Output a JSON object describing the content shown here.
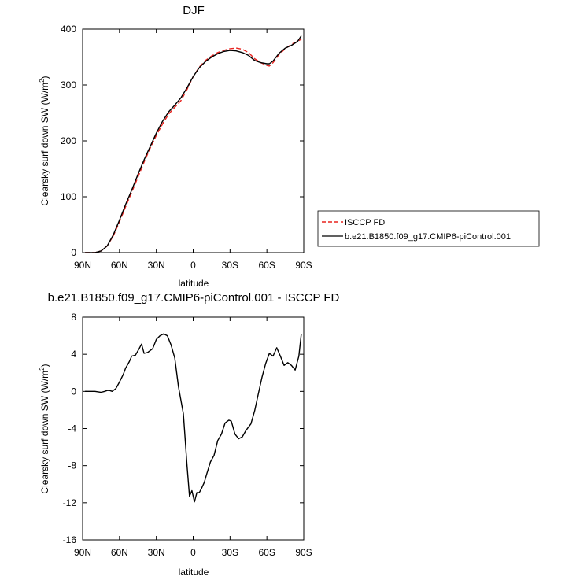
{
  "chart_data": [
    {
      "type": "line",
      "title": "DJF",
      "xlabel": "latitude",
      "ylabel": "Clearsky surf down SW (W/m",
      "ylabel_sup": "2",
      "ylabel_close": ")",
      "xlim": [
        90,
        -90
      ],
      "ylim": [
        0,
        400
      ],
      "x_ticks": [
        90,
        60,
        30,
        0,
        -30,
        -60,
        -90
      ],
      "x_tick_labels": [
        "90N",
        "60N",
        "30N",
        "0",
        "30S",
        "60S",
        "90S"
      ],
      "y_ticks": [
        0,
        100,
        200,
        300,
        400
      ],
      "y_tick_labels": [
        "0",
        "100",
        "200",
        "300",
        "400"
      ],
      "legend_position": "right",
      "grid": false,
      "series": [
        {
          "name": "ISCCP FD",
          "color": "#e8231f",
          "dash": "dashed",
          "x": [
            88,
            85,
            80,
            75,
            70,
            65,
            60,
            55,
            50,
            45,
            40,
            35,
            30,
            25,
            20,
            15,
            10,
            5,
            0,
            -5,
            -10,
            -15,
            -20,
            -25,
            -30,
            -35,
            -40,
            -45,
            -50,
            -55,
            -60,
            -62,
            -65,
            -70,
            -75,
            -80,
            -85,
            -88
          ],
          "y": [
            0,
            0,
            0,
            3,
            12,
            30,
            55,
            82,
            108,
            135,
            162,
            187,
            210,
            230,
            248,
            260,
            272,
            292,
            315,
            332,
            344,
            352,
            358,
            362,
            365,
            366,
            364,
            358,
            347,
            340,
            335,
            334,
            340,
            355,
            365,
            373,
            378,
            382
          ]
        },
        {
          "name": "b.e21.B1850.f09_g17.CMIP6-piControl.001",
          "color": "#000000",
          "dash": "solid",
          "x": [
            88,
            85,
            80,
            75,
            70,
            65,
            60,
            55,
            50,
            45,
            40,
            35,
            30,
            25,
            20,
            15,
            10,
            5,
            0,
            -5,
            -10,
            -15,
            -20,
            -25,
            -30,
            -35,
            -40,
            -45,
            -50,
            -55,
            -60,
            -62,
            -65,
            -70,
            -75,
            -80,
            -85,
            -88
          ],
          "y": [
            0,
            0,
            0,
            3,
            12,
            32,
            58,
            86,
            112,
            140,
            166,
            190,
            214,
            235,
            252,
            264,
            277,
            295,
            315,
            331,
            342,
            350,
            356,
            360,
            362,
            361,
            358,
            353,
            344,
            340,
            338,
            338,
            343,
            357,
            366,
            371,
            378,
            388
          ]
        }
      ]
    },
    {
      "type": "line",
      "title": "b.e21.B1850.f09_g17.CMIP6-piControl.001 - ISCCP FD",
      "xlabel": "latitude",
      "ylabel": "Clearsky surf down SW (W/m",
      "ylabel_sup": "2",
      "ylabel_close": ")",
      "xlim": [
        90,
        -90
      ],
      "ylim": [
        -16,
        8
      ],
      "x_ticks": [
        90,
        60,
        30,
        0,
        -30,
        -60,
        -90
      ],
      "x_tick_labels": [
        "90N",
        "60N",
        "30N",
        "0",
        "30S",
        "60S",
        "90S"
      ],
      "y_ticks": [
        8,
        4,
        0,
        -4,
        -8,
        -12,
        -16
      ],
      "y_tick_labels": [
        "8",
        "4",
        "0",
        "-4",
        "-8",
        "-12",
        "-16"
      ],
      "grid": false,
      "series": [
        {
          "color": "#000000",
          "dash": "solid",
          "x": [
            88,
            85,
            80,
            75,
            72,
            70,
            68,
            66,
            63,
            60,
            57,
            55,
            52,
            50,
            47,
            44,
            42,
            40,
            37,
            33,
            30,
            27,
            24,
            21,
            18,
            15,
            12,
            8,
            5,
            3,
            1,
            -1,
            -3,
            -5,
            -7,
            -9,
            -11,
            -14,
            -17,
            -20,
            -23,
            -26,
            -29,
            -31,
            -34,
            -37,
            -40,
            -43,
            -47,
            -50,
            -53,
            -56,
            -59,
            -62,
            -65,
            -68,
            -71,
            -74,
            -77,
            -80,
            -83,
            -86,
            -88
          ],
          "y": [
            0,
            0,
            0,
            -0.1,
            0,
            0.1,
            0.1,
            0,
            0.3,
            1,
            1.8,
            2.5,
            3.2,
            3.8,
            3.9,
            4.6,
            5.1,
            4.1,
            4.2,
            4.6,
            5.6,
            6,
            6.2,
            6,
            5,
            3.6,
            0.5,
            -2.4,
            -8,
            -11.3,
            -10.7,
            -11.9,
            -10.9,
            -10.9,
            -10.4,
            -9.8,
            -8.9,
            -7.6,
            -6.9,
            -5.3,
            -4.6,
            -3.4,
            -3.1,
            -3.2,
            -4.6,
            -5.1,
            -4.9,
            -4.2,
            -3.5,
            -2.1,
            -0.3,
            1.5,
            3,
            4.1,
            3.8,
            4.7,
            3.8,
            2.8,
            3.1,
            2.8,
            2.3,
            3.8,
            6.2
          ]
        }
      ]
    }
  ]
}
